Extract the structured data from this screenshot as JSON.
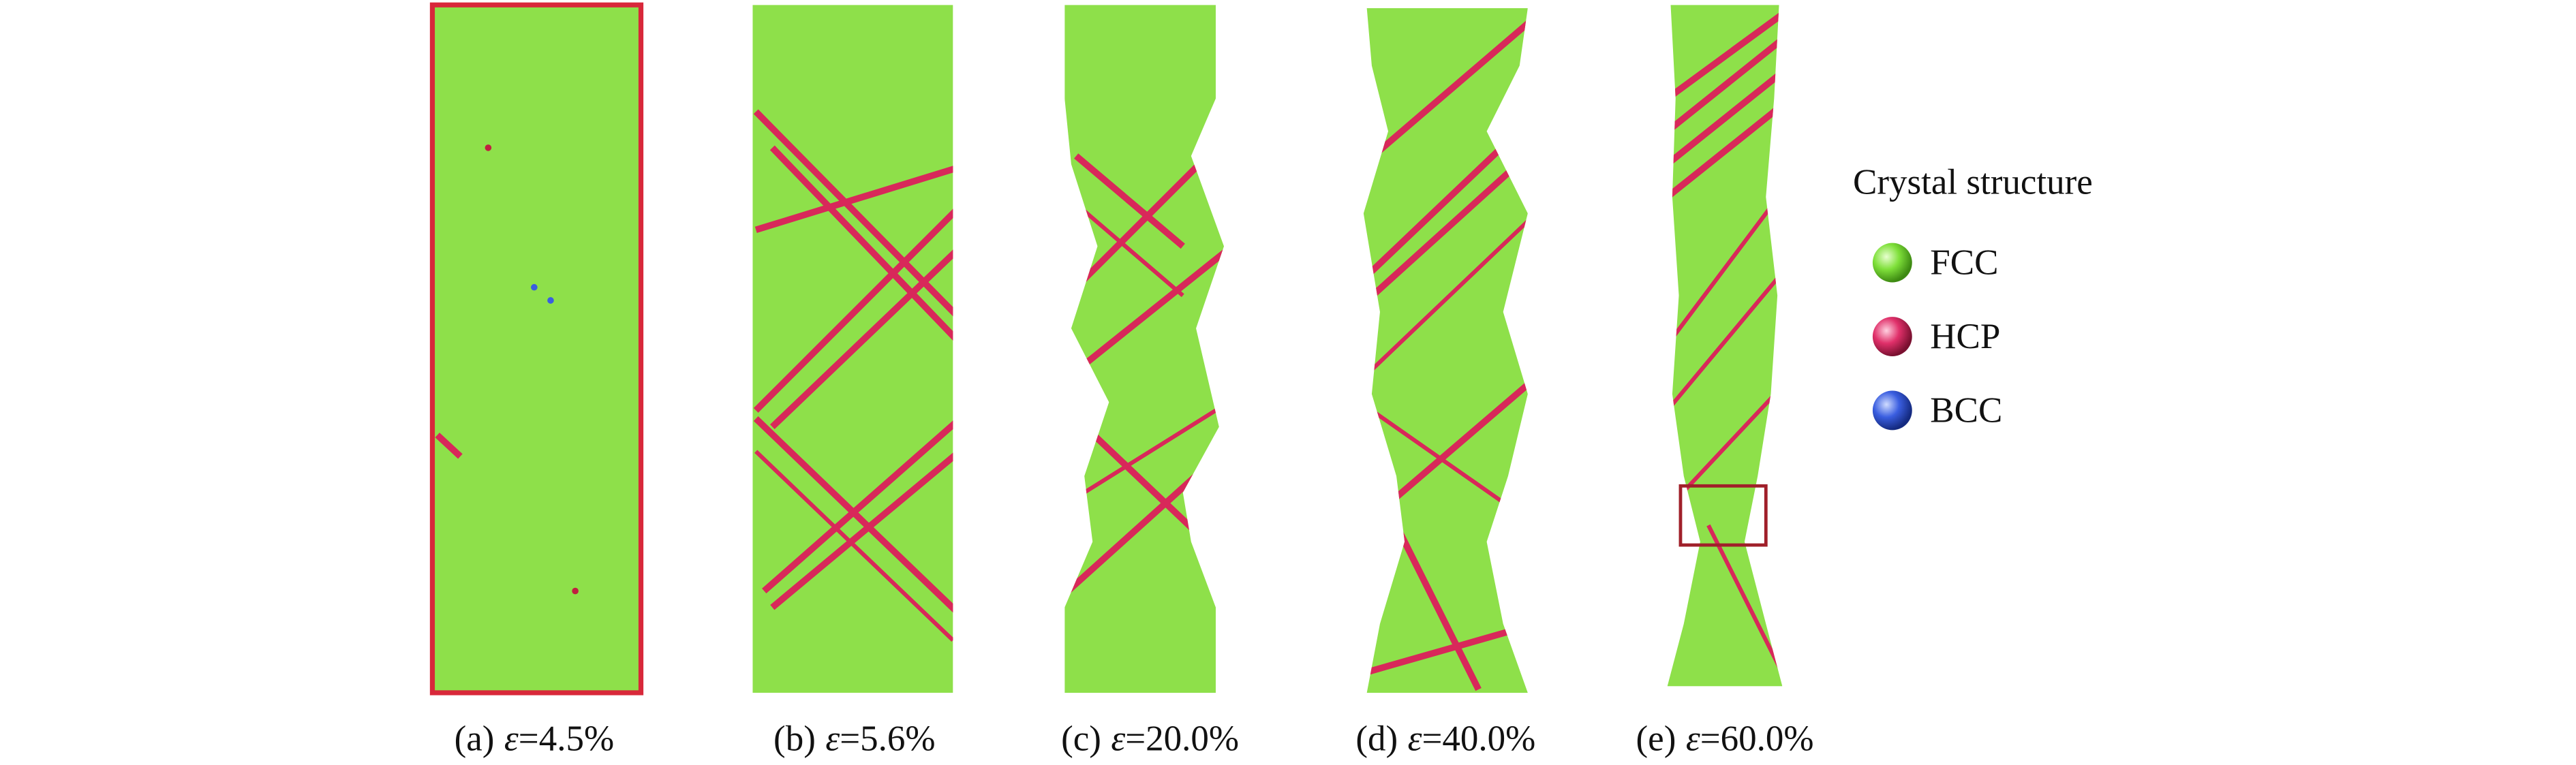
{
  "panels": [
    {
      "label": "(a)",
      "symbol": "ε",
      "strain": "=4.5%"
    },
    {
      "label": "(b)",
      "symbol": "ε",
      "strain": "=5.6%"
    },
    {
      "label": "(c)",
      "symbol": "ε",
      "strain": "=20.0%"
    },
    {
      "label": "(d)",
      "symbol": "ε",
      "strain": "=40.0%"
    },
    {
      "label": "(e)",
      "symbol": "ε",
      "strain": "=60.0%"
    }
  ],
  "legend": {
    "title": "Crystal structure",
    "items": [
      {
        "name": "FCC",
        "color": "#7fe03a"
      },
      {
        "name": "HCP",
        "color": "#e0306a"
      },
      {
        "name": "BCC",
        "color": "#3a5ee0"
      }
    ]
  }
}
